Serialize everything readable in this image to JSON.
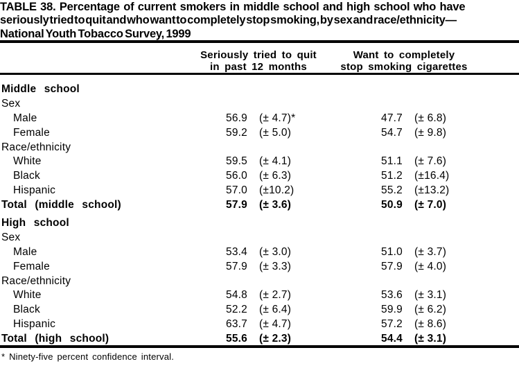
{
  "page": {
    "background_color": "#ffffff",
    "text_color": "#000000"
  },
  "title": {
    "line1": "TABLE 38. Percentage of current smokers in middle school and high school who have",
    "line2": "seriously tried to quit and who want to completely stop smoking, by sex and race/ethnicity—",
    "line3": "National Youth Tobacco Survey, 1999"
  },
  "table": {
    "column_headers": [
      {
        "line1": "Seriously tried to quit",
        "line2": "in past 12 months"
      },
      {
        "line1": "Want to completely",
        "line2": "stop smoking cigarettes"
      }
    ],
    "rows": [
      {
        "label": "Middle school"
      },
      {
        "label": "Sex"
      },
      {
        "label": "Male",
        "c1_value": "56.9",
        "c1_ci": "(± 4.7)*",
        "c2_value": "47.7",
        "c2_ci": "(± 6.8)"
      },
      {
        "label": "Female",
        "c1_value": "59.2",
        "c1_ci": "(± 5.0)",
        "c2_value": "54.7",
        "c2_ci": "(± 9.8)"
      },
      {
        "label": "Race/ethnicity"
      },
      {
        "label": "White",
        "c1_value": "59.5",
        "c1_ci": "(± 4.1)",
        "c2_value": "51.1",
        "c2_ci": "(± 7.6)"
      },
      {
        "label": "Black",
        "c1_value": "56.0",
        "c1_ci": "(± 6.3)",
        "c2_value": "51.2",
        "c2_ci": "(±16.4)"
      },
      {
        "label": "Hispanic",
        "c1_value": "57.0",
        "c1_ci": "(±10.2)",
        "c2_value": "55.2",
        "c2_ci": "(±13.2)"
      },
      {
        "label": "Total (middle school)",
        "c1_value": "57.9",
        "c1_ci": "(± 3.6)",
        "c2_value": "50.9",
        "c2_ci": "(± 7.0)"
      },
      {
        "label": "High school"
      },
      {
        "label": "Sex"
      },
      {
        "label": "Male",
        "c1_value": "53.4",
        "c1_ci": "(± 3.0)",
        "c2_value": "51.0",
        "c2_ci": "(± 3.7)"
      },
      {
        "label": "Female",
        "c1_value": "57.9",
        "c1_ci": "(± 3.3)",
        "c2_value": "57.9",
        "c2_ci": "(± 4.0)"
      },
      {
        "label": "Race/ethnicity"
      },
      {
        "label": "White",
        "c1_value": "54.8",
        "c1_ci": "(± 2.7)",
        "c2_value": "53.6",
        "c2_ci": "(± 3.1)"
      },
      {
        "label": "Black",
        "c1_value": "52.2",
        "c1_ci": "(± 6.4)",
        "c2_value": "59.9",
        "c2_ci": "(± 6.2)"
      },
      {
        "label": "Hispanic",
        "c1_value": "63.7",
        "c1_ci": "(± 4.7)",
        "c2_value": "57.2",
        "c2_ci": "(± 8.6)"
      },
      {
        "label": "Total (high school)",
        "c1_value": "55.6",
        "c1_ci": "(± 2.3)",
        "c2_value": "54.4",
        "c2_ci": "(± 3.1)"
      }
    ]
  },
  "footnote": "* Ninety-five percent confidence interval."
}
